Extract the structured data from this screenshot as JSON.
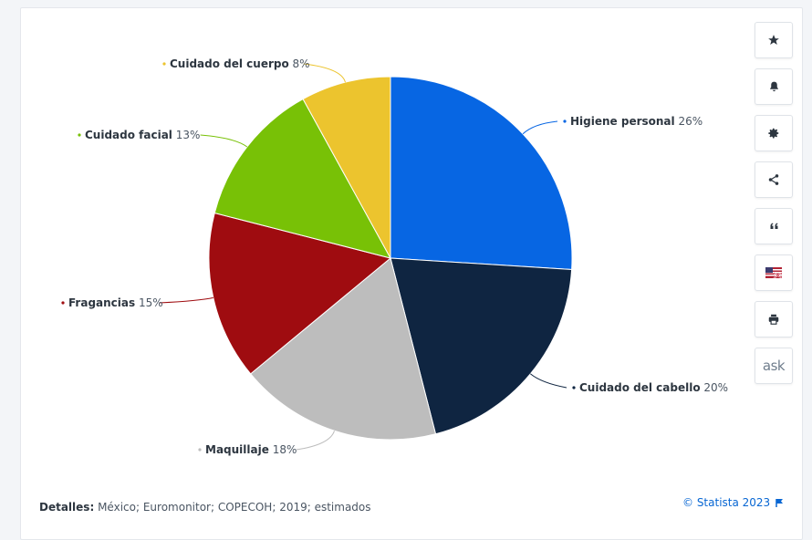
{
  "chart_data": {
    "type": "pie",
    "start_position": "12 o'clock, clockwise",
    "slices": [
      {
        "label": "Higiene personal",
        "value": 26,
        "value_label": "26%",
        "color": "#0766e3",
        "label_side": "right"
      },
      {
        "label": "Cuidado del cabello",
        "value": 20,
        "value_label": "20%",
        "color": "#0f2541",
        "label_side": "right"
      },
      {
        "label": "Maquillaje",
        "value": 18,
        "value_label": "18%",
        "color": "#bdbdbd",
        "label_side": "left"
      },
      {
        "label": "Fragancias",
        "value": 15,
        "value_label": "15%",
        "color": "#9f0c10",
        "label_side": "left"
      },
      {
        "label": "Cuidado facial",
        "value": 13,
        "value_label": "13%",
        "color": "#78c106",
        "label_side": "left"
      },
      {
        "label": "Cuidado del cuerpo",
        "value": 8,
        "value_label": "8%",
        "color": "#ecc42e",
        "label_side": "left"
      }
    ]
  },
  "footer": {
    "details_label": "Detalles:",
    "details_text": "México; Euromonitor; COPECOH; 2019; estimados",
    "credit": "© Statista 2023"
  },
  "toolbar": [
    "star-icon",
    "bell-icon",
    "gear-icon",
    "share-icon",
    "quote-icon",
    "flag-icon",
    "print-icon",
    "ask-icon"
  ],
  "toolbar_ask_label": "ask",
  "colors": {
    "accent": "#0766d3",
    "icon": "#2d3640"
  }
}
